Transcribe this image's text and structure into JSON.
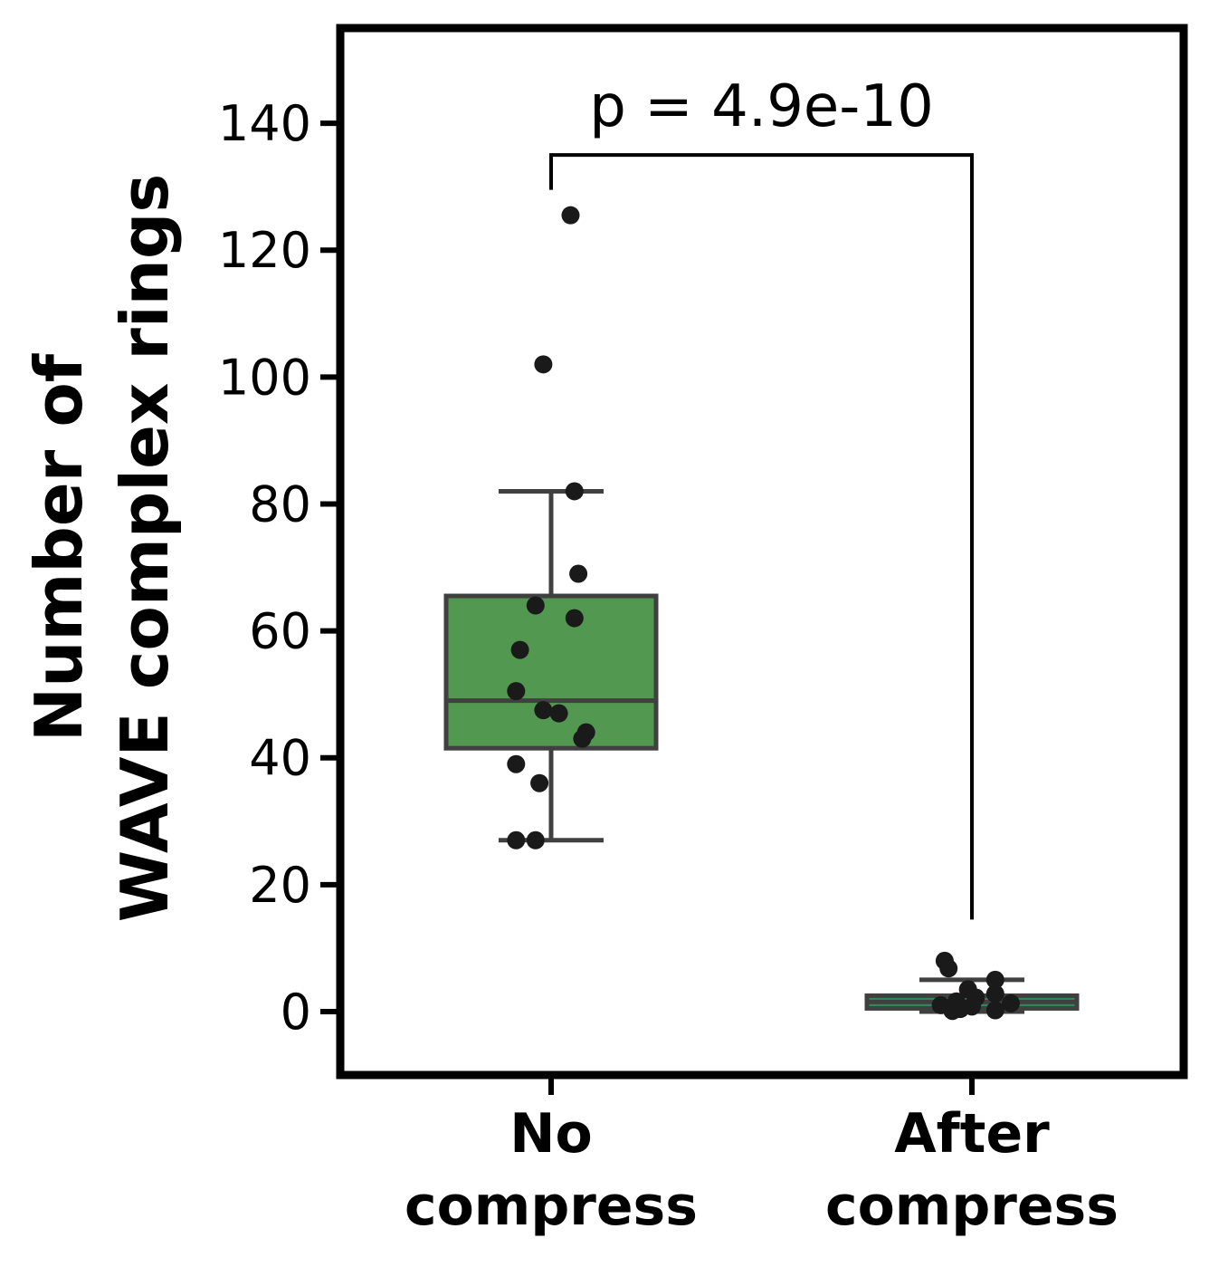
{
  "chart_data": {
    "type": "box",
    "ylabel": [
      "Number of",
      "WAVE complex rings"
    ],
    "ylim": [
      -10,
      155
    ],
    "yticks": [
      0,
      20,
      40,
      60,
      80,
      100,
      120,
      140
    ],
    "categories": [
      {
        "lines": [
          "No",
          "compress"
        ]
      },
      {
        "lines": [
          "After",
          "compress"
        ]
      }
    ],
    "boxes": [
      {
        "q1": 41.5,
        "median": 49,
        "q3": 65.5,
        "whisker_low": 27,
        "whisker_high": 82,
        "color": "#529850",
        "edge": "#404040"
      },
      {
        "q1": 0.5,
        "median": 1.5,
        "q3": 2.5,
        "whisker_low": 0,
        "whisker_high": 5,
        "color": "#2e8b57",
        "edge": "#404040"
      }
    ],
    "points": [
      [
        {
          "dx": 0.05,
          "y": 125.5
        },
        {
          "dx": -0.02,
          "y": 102
        },
        {
          "dx": 0.06,
          "y": 82
        },
        {
          "dx": 0.07,
          "y": 69
        },
        {
          "dx": -0.04,
          "y": 64
        },
        {
          "dx": 0.06,
          "y": 62
        },
        {
          "dx": -0.08,
          "y": 57
        },
        {
          "dx": -0.09,
          "y": 50.5
        },
        {
          "dx": -0.02,
          "y": 47.5
        },
        {
          "dx": 0.02,
          "y": 47
        },
        {
          "dx": 0.09,
          "y": 44
        },
        {
          "dx": 0.08,
          "y": 43
        },
        {
          "dx": -0.09,
          "y": 39
        },
        {
          "dx": -0.03,
          "y": 36
        },
        {
          "dx": -0.09,
          "y": 27
        },
        {
          "dx": -0.04,
          "y": 27
        }
      ],
      [
        {
          "dx": -0.07,
          "y": 8
        },
        {
          "dx": -0.06,
          "y": 6.8
        },
        {
          "dx": 0.06,
          "y": 5
        },
        {
          "dx": -0.01,
          "y": 3.5
        },
        {
          "dx": 0.06,
          "y": 2.8
        },
        {
          "dx": 0.01,
          "y": 2.2
        },
        {
          "dx": -0.04,
          "y": 1.6
        },
        {
          "dx": 0.1,
          "y": 1.3
        },
        {
          "dx": -0.08,
          "y": 1
        },
        {
          "dx": 0.0,
          "y": 0.8
        },
        {
          "dx": -0.03,
          "y": 0.4
        },
        {
          "dx": -0.05,
          "y": 0.1
        },
        {
          "dx": 0.06,
          "y": 0.2
        }
      ]
    ],
    "point_color": "#1a1a1a",
    "annotation": {
      "text": "p = 4.9e-10",
      "bracket_y": 135,
      "left_end_y": 129.5,
      "right_end_y": 14.5
    }
  }
}
